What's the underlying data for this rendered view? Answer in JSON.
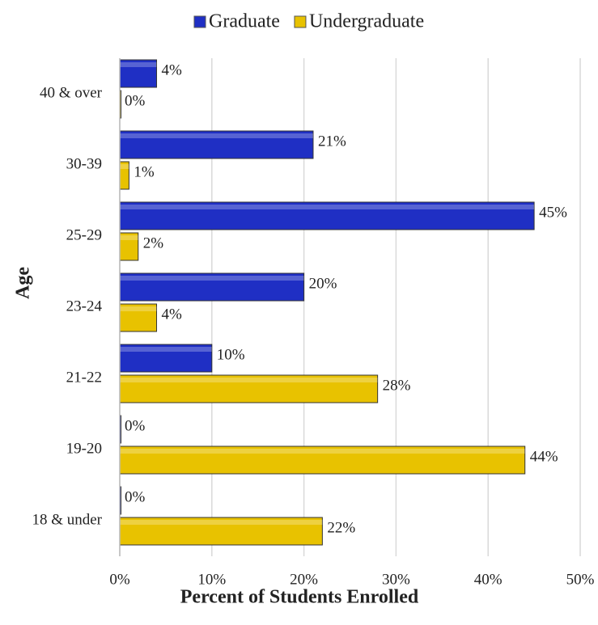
{
  "chart_data": {
    "type": "bar",
    "orientation": "horizontal",
    "categories": [
      "40 & over",
      "30-39",
      "25-29",
      "23-24",
      "21-22",
      "19-20",
      "18 & under"
    ],
    "series": [
      {
        "name": "Graduate",
        "color": "#1f2fc4",
        "values": [
          4,
          21,
          45,
          20,
          10,
          0,
          0
        ],
        "value_labels": [
          "4%",
          "21%",
          "45%",
          "20%",
          "10%",
          "0%",
          "0%"
        ]
      },
      {
        "name": "Undergraduate",
        "color": "#e8c200",
        "values": [
          0,
          1,
          2,
          4,
          28,
          44,
          22
        ],
        "value_labels": [
          "0%",
          "1%",
          "2%",
          "4%",
          "28%",
          "44%",
          "22%"
        ]
      }
    ],
    "xlim": [
      0,
      50
    ],
    "xticks": [
      {
        "value": 0,
        "label": "0%"
      },
      {
        "value": 10,
        "label": "10%"
      },
      {
        "value": 20,
        "label": "20%"
      },
      {
        "value": 30,
        "label": "30%"
      },
      {
        "value": 40,
        "label": "40%"
      },
      {
        "value": 50,
        "label": "50%"
      }
    ],
    "xlabel": "Percent of Students Enrolled",
    "ylabel": "Age",
    "grid": true,
    "legend": "top"
  }
}
